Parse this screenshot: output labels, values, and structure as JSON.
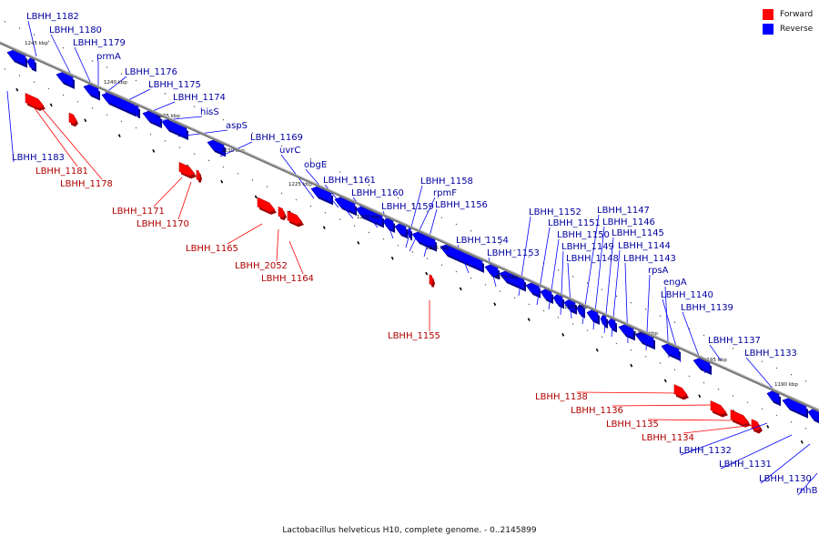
{
  "legend": {
    "forward_label": "Forward",
    "reverse_label": "Reverse",
    "forward_color": "#ff0000",
    "reverse_color": "#0000ff"
  },
  "caption": "Lactobacillus helveticus H10, complete genome. - 0..2145899",
  "scale_labels": [
    "1245 kbp",
    "1240 kbp",
    "1235 kbp",
    "1230 kbp",
    "1225 kbp",
    "1220 kbp",
    "1215 kbp",
    "1210 kbp",
    "1205 kbp",
    "1200 kbp",
    "1195 kbp",
    "1190 kbp"
  ],
  "reverse_genes": [
    "LBHH_1182",
    "LBHH_1180",
    "LBHH_1179",
    "prmA",
    "LBHH_1176",
    "LBHH_1175",
    "LBHH_1174",
    "hisS",
    "aspS",
    "LBHH_1169",
    "uvrC",
    "obgE",
    "LBHH_1161",
    "LBHH_1160",
    "LBHH_1159",
    "LBHH_1158",
    "rpmF",
    "LBHH_1156",
    "LBHH_1154",
    "LBHH_1153",
    "LBHH_1152",
    "LBHH_1151",
    "LBHH_1150",
    "LBHH_1149",
    "LBHH_1148",
    "LBHH_1147",
    "LBHH_1146",
    "LBHH_1145",
    "LBHH_1144",
    "LBHH_1143",
    "rpsA",
    "engA",
    "LBHH_1140",
    "LBHH_1139",
    "LBHH_1137",
    "LBHH_1133",
    "LBHH_1183",
    "LBHH_1132",
    "LBHH_1131",
    "LBHH_1130",
    "rnhB"
  ],
  "forward_genes": [
    "LBHH_1181",
    "LBHH_1178",
    "LBHH_1171",
    "LBHH_1170",
    "LBHH_1165",
    "LBHH_2052",
    "LBHH_1164",
    "LBHH_1155",
    "LBHH_1138",
    "LBHH_1136",
    "LBHH_1135",
    "LBHH_1134"
  ]
}
